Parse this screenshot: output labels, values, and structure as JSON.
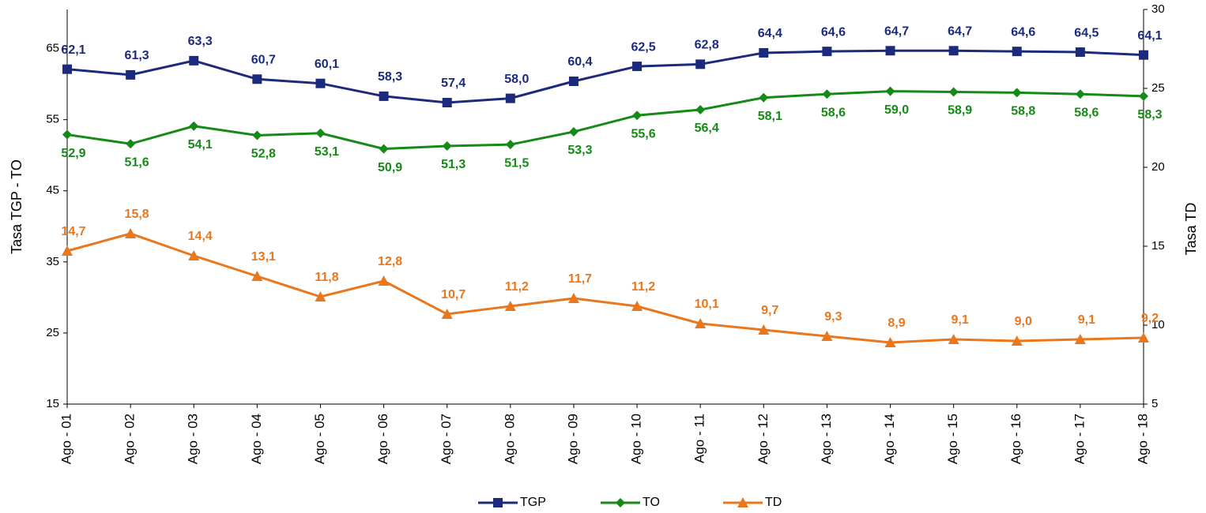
{
  "chart_data": {
    "type": "line",
    "y_label": "Tasa TGP - TO",
    "y2_label": "Tasa TD",
    "categories": [
      "Ago - 01",
      "Ago - 02",
      "Ago - 03",
      "Ago - 04",
      "Ago - 05",
      "Ago - 06",
      "Ago - 07",
      "Ago - 08",
      "Ago - 09",
      "Ago - 10",
      "Ago - 11",
      "Ago - 12",
      "Ago - 13",
      "Ago - 14",
      "Ago - 15",
      "Ago - 16",
      "Ago - 17",
      "Ago - 18"
    ],
    "ylim": [
      15,
      70.5
    ],
    "yticks": [
      15,
      25,
      35,
      45,
      55,
      65
    ],
    "y2lim": [
      5,
      30
    ],
    "y2ticks": [
      5,
      10,
      15,
      20,
      25,
      30
    ],
    "legend": "bottom",
    "series": [
      {
        "name": "TGP",
        "color": "#1c2a7c",
        "marker": "square",
        "label_side": "above",
        "values": [
          62.1,
          61.3,
          63.3,
          60.7,
          60.1,
          58.3,
          57.4,
          58.0,
          60.4,
          62.5,
          62.8,
          64.4,
          64.6,
          64.7,
          64.7,
          64.6,
          64.5,
          64.1
        ],
        "value_labels": [
          "62,1",
          "61,3",
          "63,3",
          "60,7",
          "60,1",
          "58,3",
          "57,4",
          "58,0",
          "60,4",
          "62,5",
          "62,8",
          "64,4",
          "64,6",
          "64,7",
          "64,7",
          "64,6",
          "64,5",
          "64,1"
        ]
      },
      {
        "name": "TO",
        "color": "#168a16",
        "marker": "diamond",
        "label_side": "below",
        "values": [
          52.9,
          51.6,
          54.1,
          52.8,
          53.1,
          50.9,
          51.3,
          51.5,
          53.3,
          55.6,
          56.4,
          58.1,
          58.6,
          59.0,
          58.9,
          58.8,
          58.6,
          58.3
        ],
        "value_labels": [
          "52,9",
          "51,6",
          "54,1",
          "52,8",
          "53,1",
          "50,9",
          "51,3",
          "51,5",
          "53,3",
          "55,6",
          "56,4",
          "58,1",
          "58,6",
          "59,0",
          "58,9",
          "58,8",
          "58,6",
          "58,3"
        ]
      },
      {
        "name": "TD",
        "color": "#e8771e",
        "marker": "triangle",
        "label_side": "above",
        "axis": "y2",
        "values": [
          14.7,
          15.8,
          14.4,
          13.1,
          11.8,
          12.8,
          10.7,
          11.2,
          11.7,
          11.2,
          10.1,
          9.7,
          9.3,
          8.9,
          9.1,
          9.0,
          9.1,
          9.2
        ],
        "value_labels": [
          "14,7",
          "15,8",
          "14,4",
          "13,1",
          "11,8",
          "12,8",
          "10,7",
          "11,2",
          "11,7",
          "11,2",
          "10,1",
          "9,7",
          "9,3",
          "8,9",
          "9,1",
          "9,0",
          "9,1",
          "9,2"
        ]
      }
    ]
  }
}
